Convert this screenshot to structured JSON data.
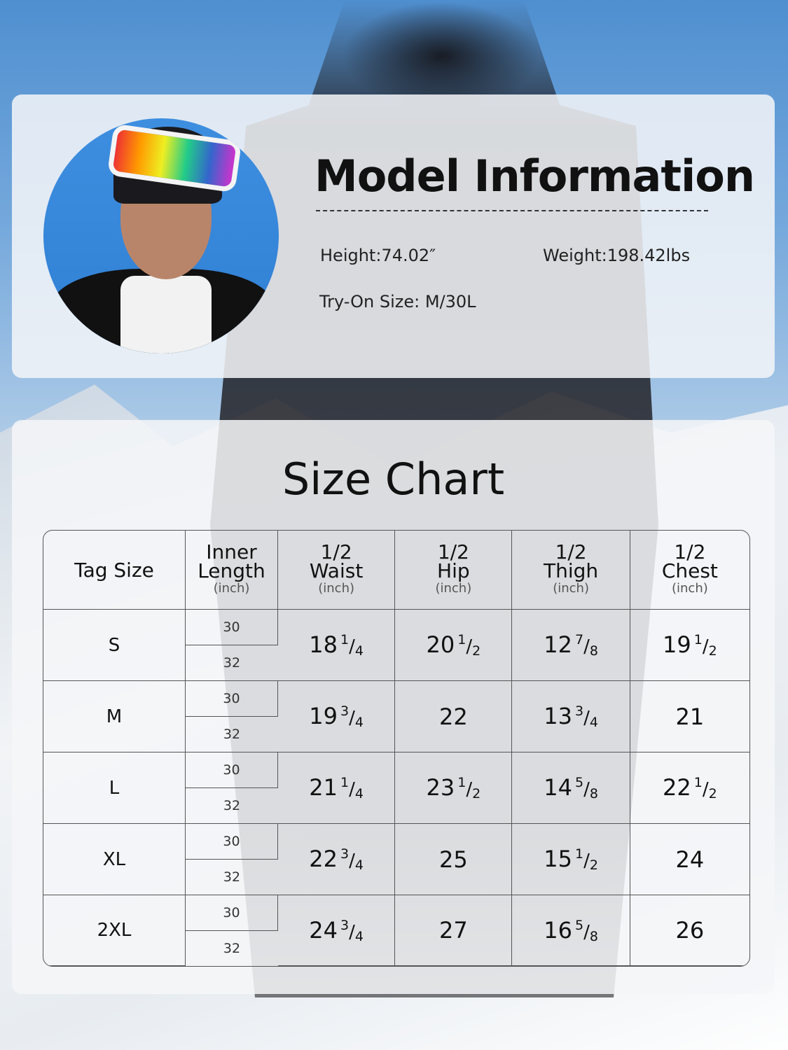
{
  "model": {
    "title": "Model Information",
    "height": "Height:74.02″",
    "weight": "Weight:198.42lbs",
    "try_on": "Try-On Size: M/30L"
  },
  "size_chart": {
    "title": "Size Chart",
    "headers": [
      {
        "top": "",
        "label": "Tag Size",
        "unit": ""
      },
      {
        "top": "Inner",
        "label": "Length",
        "unit": "(inch)"
      },
      {
        "top": "1/2",
        "label": "Waist",
        "unit": "(inch)"
      },
      {
        "top": "1/2",
        "label": "Hip",
        "unit": "(inch)"
      },
      {
        "top": "1/2",
        "label": "Thigh",
        "unit": "(inch)"
      },
      {
        "top": "1/2",
        "label": "Chest",
        "unit": "(inch)"
      }
    ],
    "rows": [
      {
        "size": "S",
        "lengths": [
          "30",
          "32"
        ],
        "waist": {
          "whole": "18",
          "num": "1",
          "den": "4"
        },
        "hip": {
          "whole": "20",
          "num": "1",
          "den": "2"
        },
        "thigh": {
          "whole": "12",
          "num": "7",
          "den": "8"
        },
        "chest": {
          "whole": "19",
          "num": "1",
          "den": "2"
        }
      },
      {
        "size": "M",
        "lengths": [
          "30",
          "32"
        ],
        "waist": {
          "whole": "19",
          "num": "3",
          "den": "4"
        },
        "hip": {
          "whole": "22"
        },
        "thigh": {
          "whole": "13",
          "num": "3",
          "den": "4"
        },
        "chest": {
          "whole": "21"
        }
      },
      {
        "size": "L",
        "lengths": [
          "30",
          "32"
        ],
        "waist": {
          "whole": "21",
          "num": "1",
          "den": "4"
        },
        "hip": {
          "whole": "23",
          "num": "1",
          "den": "2"
        },
        "thigh": {
          "whole": "14",
          "num": "5",
          "den": "8"
        },
        "chest": {
          "whole": "22",
          "num": "1",
          "den": "2"
        }
      },
      {
        "size": "XL",
        "lengths": [
          "30",
          "32"
        ],
        "waist": {
          "whole": "22",
          "num": "3",
          "den": "4"
        },
        "hip": {
          "whole": "25"
        },
        "thigh": {
          "whole": "15",
          "num": "1",
          "den": "2"
        },
        "chest": {
          "whole": "24"
        }
      },
      {
        "size": "2XL",
        "lengths": [
          "30",
          "32"
        ],
        "waist": {
          "whole": "24",
          "num": "3",
          "den": "4"
        },
        "hip": {
          "whole": "27"
        },
        "thigh": {
          "whole": "16",
          "num": "5",
          "den": "8"
        },
        "chest": {
          "whole": "26"
        }
      }
    ]
  }
}
